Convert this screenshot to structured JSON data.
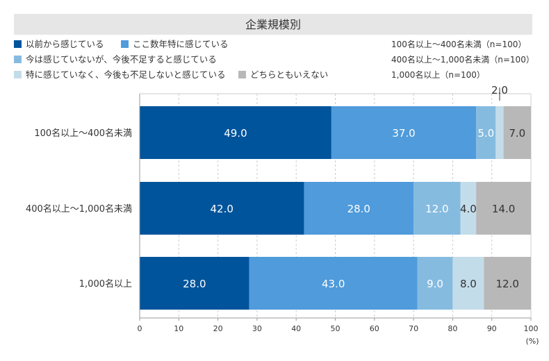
{
  "chart_data": {
    "type": "bar",
    "orientation": "horizontal-stacked-100",
    "title": "企業規模別",
    "categories": [
      "100名以上〜400名未満",
      "400名以上〜1,000名未満",
      "1,000名以上"
    ],
    "series": [
      {
        "name": "以前から感じている",
        "color": "#00549c",
        "values": [
          49.0,
          42.0,
          28.0
        ],
        "label_color": "#ffffff"
      },
      {
        "name": "ここ数年特に感じている",
        "color": "#4f9bdb",
        "values": [
          37.0,
          28.0,
          43.0
        ],
        "label_color": "#ffffff"
      },
      {
        "name": "今は感じていないが、今後不足すると感じている",
        "color": "#86bbe0",
        "values": [
          5.0,
          12.0,
          9.0
        ],
        "label_color": "#ffffff"
      },
      {
        "name": "特に感じていなく、今後も不足しないと感じている",
        "color": "#c3dcea",
        "values": [
          2.0,
          4.0,
          8.0
        ],
        "label_color": "#333333"
      },
      {
        "name": "どちらともいえない",
        "color": "#b8b8b8",
        "values": [
          7.0,
          14.0,
          12.0
        ],
        "label_color": "#333333"
      }
    ],
    "sample_notes": [
      "100名以上〜400名未満（n=100）",
      "400名以上〜1,000名未満（n=100）",
      "1,000名以上（n=100）"
    ],
    "xlim": [
      0,
      100
    ],
    "xticks": [
      "0",
      "10",
      "20",
      "30",
      "40",
      "50",
      "60",
      "70",
      "80",
      "90",
      "100"
    ],
    "xunit": "(%)",
    "grid": true,
    "legend_position": "top-left"
  }
}
